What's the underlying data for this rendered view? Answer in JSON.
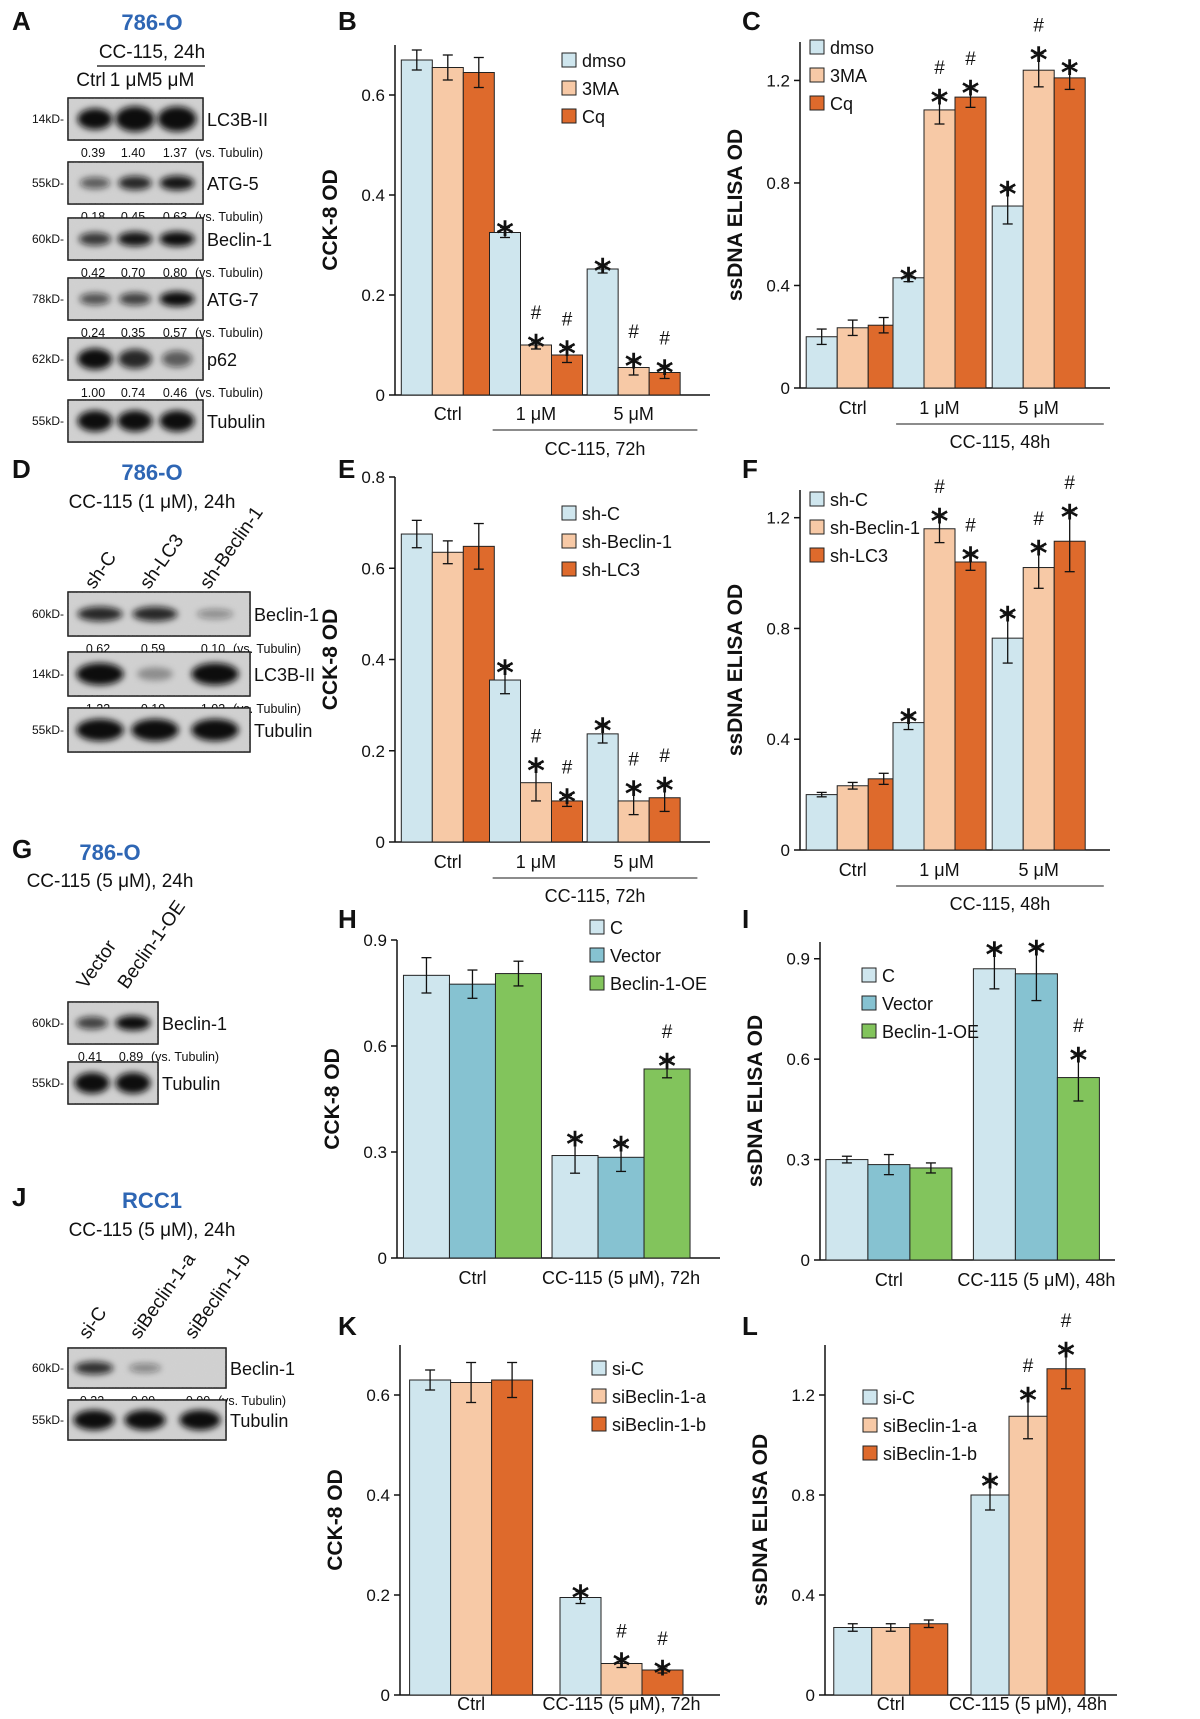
{
  "colors": {
    "c1": "#cfe6ee",
    "c2": "#f7c9a6",
    "c3": "#de6a2c",
    "teal": "#86c2d1",
    "green": "#82c45c",
    "blue_title": "#2e66b4",
    "red_label": "#e53a33",
    "green_label": "#3aa335"
  },
  "blots": [
    {
      "letter": "A",
      "cell": "786-O",
      "condition": "CC-115, 24h",
      "lanes": [
        "Ctrl",
        "1 μM",
        "5 μM"
      ],
      "lane_colors": [
        "",
        "",
        ""
      ],
      "rotated": false,
      "rows": [
        {
          "label": "LC3B-II",
          "kd": "14kD-",
          "intensity": [
            1.0,
            1.4,
            1.37
          ],
          "quant": [
            "0.39",
            "1.40",
            "1.37"
          ]
        },
        {
          "label": "ATG-5",
          "kd": "55kD-",
          "intensity": [
            0.55,
            0.85,
            0.95
          ],
          "quant": [
            "0.18",
            "0.45",
            "0.63"
          ]
        },
        {
          "label": "Beclin-1",
          "kd": "60kD-",
          "intensity": [
            0.75,
            0.95,
            1.0
          ],
          "quant": [
            "0.42",
            "0.70",
            "0.80"
          ]
        },
        {
          "label": "ATG-7",
          "kd": "78kD-",
          "intensity": [
            0.6,
            0.7,
            1.0
          ],
          "quant": [
            "0.24",
            "0.35",
            "0.57"
          ]
        },
        {
          "label": "p62",
          "kd": "62kD-",
          "intensity": [
            1.0,
            0.85,
            0.55
          ],
          "quant": [
            "1.00",
            "0.74",
            "0.46"
          ]
        },
        {
          "label": "Tubulin",
          "kd": "55kD-",
          "intensity": [
            1.0,
            1.0,
            1.0
          ],
          "quant": null
        }
      ],
      "vs": "(vs. Tubulin)"
    },
    {
      "letter": "D",
      "cell": "786-O",
      "condition": "CC-115 (1 μM), 24h",
      "lanes": [
        "sh-C",
        "sh-LC3",
        "sh-Beclin-1"
      ],
      "lane_colors": [
        "",
        "",
        ""
      ],
      "rotated": true,
      "rows": [
        {
          "label": "Beclin-1",
          "kd": "60kD-",
          "intensity": [
            0.85,
            0.85,
            0.25
          ],
          "quant": [
            "0.62",
            "0.59",
            "0.10"
          ]
        },
        {
          "label": "LC3B-II",
          "kd": "14kD-",
          "intensity": [
            1.0,
            0.2,
            1.0
          ],
          "quant": [
            "1.23",
            "0.10",
            "1.03"
          ]
        },
        {
          "label": "Tubulin",
          "kd": "55kD-",
          "intensity": [
            1.0,
            1.0,
            1.0
          ],
          "quant": null
        }
      ],
      "vs": "(vs. Tubulin)"
    },
    {
      "letter": "G",
      "cell": "786-O",
      "condition": "CC-115 (5 μM), 24h",
      "lanes": [
        "Vector",
        "Beclin-1-OE"
      ],
      "lane_colors": [
        "",
        "green"
      ],
      "rotated": true,
      "rows": [
        {
          "label": "Beclin-1",
          "kd": "60kD-",
          "intensity": [
            0.7,
            1.0
          ],
          "quant": [
            "0.41",
            "0.89"
          ]
        },
        {
          "label": "Tubulin",
          "kd": "55kD-",
          "intensity": [
            1.0,
            1.0
          ],
          "quant": null
        }
      ],
      "vs": "(vs. Tubulin)"
    },
    {
      "letter": "J",
      "cell": "RCC1",
      "condition": "CC-115 (5 μM), 24h",
      "lanes": [
        "si-C",
        "siBeclin-1-a",
        "siBeclin-1-b"
      ],
      "lane_colors": [
        "",
        "red",
        "red"
      ],
      "rotated": true,
      "rows": [
        {
          "label": "Beclin-1",
          "kd": "60kD-",
          "intensity": [
            0.8,
            0.3,
            0.0
          ],
          "quant": [
            "0.32",
            "0.09",
            "0.00"
          ]
        },
        {
          "label": "Tubulin",
          "kd": "55kD-",
          "intensity": [
            1.0,
            1.0,
            1.0
          ],
          "quant": null
        }
      ],
      "vs": "(vs. Tubulin)"
    }
  ],
  "chart_data": [
    {
      "letter": "B",
      "type": "bar",
      "ylabel": "CCK-8 OD",
      "ylim": [
        0,
        0.7
      ],
      "yticks": [
        "0",
        "0.2",
        "0.4",
        "0.6"
      ],
      "ytick_vals": [
        0,
        0.2,
        0.4,
        0.6
      ],
      "categories": [
        "Ctrl",
        "1 μM",
        "5 μM"
      ],
      "group_label": "CC-115, 72h",
      "series": [
        {
          "name": "dmso",
          "color": "c1",
          "values": [
            0.67,
            0.325,
            0.252
          ],
          "err": [
            0.02,
            0.01,
            0.008
          ],
          "marks": [
            "",
            "*",
            "*"
          ]
        },
        {
          "name": "3MA",
          "color": "c2",
          "values": [
            0.655,
            0.1,
            0.055
          ],
          "err": [
            0.025,
            0.008,
            0.015
          ],
          "marks": [
            "",
            "#*",
            "#*"
          ]
        },
        {
          "name": "Cq",
          "color": "c3",
          "values": [
            0.645,
            0.08,
            0.045
          ],
          "err": [
            0.03,
            0.015,
            0.012
          ],
          "marks": [
            "",
            "#*",
            "#*"
          ]
        }
      ],
      "legend": "top-right"
    },
    {
      "letter": "C",
      "type": "bar",
      "ylabel": "ssDNA ELISA OD",
      "ylim": [
        0,
        1.35
      ],
      "yticks": [
        "0",
        "0.4",
        "0.8",
        "1.2"
      ],
      "ytick_vals": [
        0,
        0.4,
        0.8,
        1.2
      ],
      "categories": [
        "Ctrl",
        "1 μM",
        "5 μM"
      ],
      "group_label": "CC-115, 48h",
      "series": [
        {
          "name": "dmso",
          "color": "c1",
          "values": [
            0.2,
            0.43,
            0.71
          ],
          "err": [
            0.03,
            0.015,
            0.07
          ],
          "marks": [
            "",
            "*",
            "*"
          ]
        },
        {
          "name": "3MA",
          "color": "c2",
          "values": [
            0.235,
            1.085,
            1.24
          ],
          "err": [
            0.03,
            0.055,
            0.065
          ],
          "marks": [
            "",
            "#*",
            "#*"
          ]
        },
        {
          "name": "Cq",
          "color": "c3",
          "values": [
            0.245,
            1.135,
            1.21
          ],
          "err": [
            0.03,
            0.04,
            0.045
          ],
          "marks": [
            "",
            "#*",
            "*"
          ]
        }
      ],
      "legend": "top-left"
    },
    {
      "letter": "E",
      "type": "bar",
      "ylabel": "CCK-8 OD",
      "ylim": [
        0,
        0.8
      ],
      "yticks": [
        "0",
        "0.2",
        "0.4",
        "0.6",
        "0.8"
      ],
      "ytick_vals": [
        0,
        0.2,
        0.4,
        0.6,
        0.8
      ],
      "categories": [
        "Ctrl",
        "1 μM",
        "5 μM"
      ],
      "group_label": "CC-115, 72h",
      "series": [
        {
          "name": "sh-C",
          "color": "c1",
          "values": [
            0.675,
            0.355,
            0.237
          ],
          "err": [
            0.03,
            0.03,
            0.02
          ],
          "marks": [
            "",
            "*",
            "*"
          ]
        },
        {
          "name": "sh-Beclin-1",
          "color": "c2",
          "values": [
            0.635,
            0.13,
            0.09
          ],
          "err": [
            0.025,
            0.04,
            0.03
          ],
          "marks": [
            "",
            "#*",
            "#*"
          ]
        },
        {
          "name": "sh-LC3",
          "color": "c3",
          "values": [
            0.648,
            0.09,
            0.097
          ],
          "err": [
            0.05,
            0.012,
            0.03
          ],
          "marks": [
            "",
            "#*",
            "#*"
          ]
        }
      ],
      "legend": "top-right"
    },
    {
      "letter": "F",
      "type": "bar",
      "ylabel": "ssDNA ELISA OD",
      "ylim": [
        0,
        1.3
      ],
      "yticks": [
        "0",
        "0.4",
        "0.8",
        "1.2"
      ],
      "ytick_vals": [
        0,
        0.4,
        0.8,
        1.2
      ],
      "categories": [
        "Ctrl",
        "1 μM",
        "5 μM"
      ],
      "group_label": "CC-115, 48h",
      "series": [
        {
          "name": "sh-C",
          "color": "c1",
          "values": [
            0.2,
            0.46,
            0.765
          ],
          "err": [
            0.008,
            0.025,
            0.09
          ],
          "marks": [
            "",
            "*",
            "*"
          ]
        },
        {
          "name": "sh-Beclin-1",
          "color": "c2",
          "values": [
            0.232,
            1.16,
            1.02
          ],
          "err": [
            0.012,
            0.05,
            0.075
          ],
          "marks": [
            "",
            "#*",
            "#*"
          ]
        },
        {
          "name": "sh-LC3",
          "color": "c3",
          "values": [
            0.257,
            1.04,
            1.115
          ],
          "err": [
            0.02,
            0.03,
            0.11
          ],
          "marks": [
            "",
            "#*",
            "#*"
          ]
        }
      ],
      "legend": "top-left"
    },
    {
      "letter": "H",
      "type": "bar",
      "ylabel": "CCK-8 OD",
      "ylim": [
        0,
        0.9
      ],
      "yticks": [
        "0",
        "0.3",
        "0.6",
        "0.9"
      ],
      "ytick_vals": [
        0,
        0.3,
        0.6,
        0.9
      ],
      "categories": [
        "Ctrl",
        "CC-115 (5 μM), 72h"
      ],
      "group_label": "",
      "series": [
        {
          "name": "C",
          "color": "c1",
          "values": [
            0.8,
            0.29
          ],
          "err": [
            0.05,
            0.05
          ],
          "marks": [
            "",
            "*"
          ]
        },
        {
          "name": "Vector",
          "color": "teal",
          "values": [
            0.775,
            0.285
          ],
          "err": [
            0.04,
            0.04
          ],
          "marks": [
            "",
            "*"
          ]
        },
        {
          "name": "Beclin-1-OE",
          "color": "green",
          "values": [
            0.805,
            0.535
          ],
          "err": [
            0.035,
            0.025
          ],
          "marks": [
            "",
            "#*"
          ]
        }
      ],
      "legend": "top-right",
      "legend_last_color": "green_label"
    },
    {
      "letter": "I",
      "type": "bar",
      "ylabel": "ssDNA ELISA OD",
      "ylim": [
        0,
        0.95
      ],
      "yticks": [
        "0",
        "0.3",
        "0.6",
        "0.9"
      ],
      "ytick_vals": [
        0,
        0.3,
        0.6,
        0.9
      ],
      "categories": [
        "Ctrl",
        "CC-115 (5 μM), 48h"
      ],
      "group_label": "",
      "series": [
        {
          "name": "C",
          "color": "c1",
          "values": [
            0.3,
            0.87
          ],
          "err": [
            0.01,
            0.06
          ],
          "marks": [
            "",
            "*"
          ]
        },
        {
          "name": "Vector",
          "color": "teal",
          "values": [
            0.285,
            0.855
          ],
          "err": [
            0.03,
            0.08
          ],
          "marks": [
            "",
            "*"
          ]
        },
        {
          "name": "Beclin-1-OE",
          "color": "green",
          "values": [
            0.275,
            0.545
          ],
          "err": [
            0.015,
            0.07
          ],
          "marks": [
            "",
            "#*"
          ]
        }
      ],
      "legend": "top-left",
      "legend_last_color": "green_label"
    },
    {
      "letter": "K",
      "type": "bar",
      "ylabel": "CCK-8 OD",
      "ylim": [
        0,
        0.7
      ],
      "yticks": [
        "0",
        "0.2",
        "0.4",
        "0.6"
      ],
      "ytick_vals": [
        0,
        0.2,
        0.4,
        0.6
      ],
      "categories": [
        "Ctrl",
        "CC-115 (5 μM), 72h"
      ],
      "group_label": "",
      "series": [
        {
          "name": "si-C",
          "color": "c1",
          "values": [
            0.63,
            0.195
          ],
          "err": [
            0.02,
            0.012
          ],
          "marks": [
            "",
            "*"
          ]
        },
        {
          "name": "siBeclin-1-a",
          "color": "c2",
          "values": [
            0.625,
            0.063
          ],
          "err": [
            0.04,
            0.008
          ],
          "marks": [
            "",
            "#*"
          ]
        },
        {
          "name": "siBeclin-1-b",
          "color": "c3",
          "values": [
            0.63,
            0.05
          ],
          "err": [
            0.035,
            0.006
          ],
          "marks": [
            "",
            "#*"
          ]
        }
      ],
      "legend": "top-right",
      "legend_red": true
    },
    {
      "letter": "L",
      "type": "bar",
      "ylabel": "ssDNA ELISA OD",
      "ylim": [
        0,
        1.4
      ],
      "yticks": [
        "0",
        "0.4",
        "0.8",
        "1.2"
      ],
      "ytick_vals": [
        0,
        0.4,
        0.8,
        1.2
      ],
      "categories": [
        "Ctrl",
        "CC-115 (5 μM), 48h"
      ],
      "group_label": "",
      "series": [
        {
          "name": "si-C",
          "color": "c1",
          "values": [
            0.27,
            0.8
          ],
          "err": [
            0.015,
            0.06
          ],
          "marks": [
            "",
            "*"
          ]
        },
        {
          "name": "siBeclin-1-a",
          "color": "c2",
          "values": [
            0.27,
            1.115
          ],
          "err": [
            0.015,
            0.09
          ],
          "marks": [
            "",
            "#*"
          ]
        },
        {
          "name": "siBeclin-1-b",
          "color": "c3",
          "values": [
            0.285,
            1.305
          ],
          "err": [
            0.015,
            0.08
          ],
          "marks": [
            "",
            "#*"
          ]
        }
      ],
      "legend": "top-left",
      "legend_red": true
    }
  ]
}
